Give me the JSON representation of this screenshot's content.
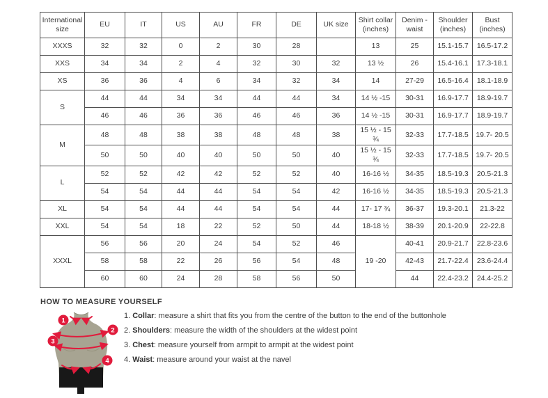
{
  "table": {
    "headers": [
      "International size",
      "EU",
      "IT",
      "US",
      "AU",
      "FR",
      "DE",
      "UK size",
      "Shirt collar (inches)",
      "Denim - waist",
      "Shoulder (inches)",
      "Bust (inches)"
    ],
    "rows": [
      {
        "size": "XXXS",
        "size_rowspan": 1,
        "cells": [
          "32",
          "32",
          "0",
          "2",
          "30",
          "28",
          "",
          "13",
          "25",
          "15.1-15.7",
          "16.5-17.2"
        ]
      },
      {
        "size": "XXS",
        "size_rowspan": 1,
        "cells": [
          "34",
          "34",
          "2",
          "4",
          "32",
          "30",
          "32",
          "13 ½",
          "26",
          "15.4-16.1",
          "17.3-18.1"
        ]
      },
      {
        "size": "XS",
        "size_rowspan": 1,
        "cells": [
          "36",
          "36",
          "4",
          "6",
          "34",
          "32",
          "34",
          "14",
          "27-29",
          "16.5-16.4",
          "18.1-18.9"
        ]
      },
      {
        "size": "S",
        "size_rowspan": 2,
        "cells": [
          "44",
          "44",
          "34",
          "34",
          "44",
          "44",
          "34",
          "14 ½ -15",
          "30-31",
          "16.9-17.7",
          "18.9-19.7"
        ]
      },
      {
        "size": "",
        "size_rowspan": 0,
        "cells": [
          "46",
          "46",
          "36",
          "36",
          "46",
          "46",
          "36",
          "14 ½ -15",
          "30-31",
          "16.9-17.7",
          "18.9-19.7"
        ]
      },
      {
        "size": "M",
        "size_rowspan": 2,
        "cells": [
          "48",
          "48",
          "38",
          "38",
          "48",
          "48",
          "38",
          "15 ½ - 15 ¾",
          "32-33",
          "17.7-18.5",
          "19.7- 20.5"
        ]
      },
      {
        "size": "",
        "size_rowspan": 0,
        "cells": [
          "50",
          "50",
          "40",
          "40",
          "50",
          "50",
          "40",
          "15 ½ - 15 ¾",
          "32-33",
          "17.7-18.5",
          "19.7- 20.5"
        ]
      },
      {
        "size": "L",
        "size_rowspan": 2,
        "cells": [
          "52",
          "52",
          "42",
          "42",
          "52",
          "52",
          "40",
          "16-16 ½",
          "34-35",
          "18.5-19.3",
          "20.5-21.3"
        ]
      },
      {
        "size": "",
        "size_rowspan": 0,
        "cells": [
          "54",
          "54",
          "44",
          "44",
          "54",
          "54",
          "42",
          "16-16 ½",
          "34-35",
          "18.5-19.3",
          "20.5-21.3"
        ]
      },
      {
        "size": "XL",
        "size_rowspan": 1,
        "cells": [
          "54",
          "54",
          "44",
          "44",
          "54",
          "54",
          "44",
          "17- 17 ¾",
          "36-37",
          "19.3-20.1",
          "21.3-22"
        ]
      },
      {
        "size": "XXL",
        "size_rowspan": 1,
        "cells": [
          "54",
          "54",
          "18",
          "22",
          "52",
          "50",
          "44",
          "18-18 ½",
          "38-39",
          "20.1-20.9",
          "22-22.8"
        ]
      },
      {
        "size": "XXXL",
        "size_rowspan": 3,
        "cells": [
          "56",
          "56",
          "20",
          "24",
          "54",
          "52",
          "46",
          {
            "t": "19 -20",
            "rs": 3
          },
          "40-41",
          "20.9-21.7",
          "22.8-23.6"
        ]
      },
      {
        "size": "",
        "size_rowspan": 0,
        "cells": [
          "58",
          "58",
          "22",
          "26",
          "56",
          "54",
          "48",
          "42-43",
          "21.7-22.4",
          "23.6-24.4"
        ]
      },
      {
        "size": "",
        "size_rowspan": 0,
        "cells": [
          "60",
          "60",
          "24",
          "28",
          "58",
          "56",
          "50",
          "44",
          "22.4-23.2",
          "24.4-25.2"
        ]
      }
    ]
  },
  "measure_guide": {
    "title": "HOW TO MEASURE YOURSELF",
    "items": [
      {
        "num": "1.",
        "label": "Collar",
        "marker": "1",
        "text": ": measure a shirt that fits you from the centre of the button to the end of the buttonhole"
      },
      {
        "num": "2.",
        "label": "Shoulders",
        "marker": "2",
        "text": ": measure the width of the shoulders at the widest point"
      },
      {
        "num": "3.",
        "label": "Chest",
        "marker": "3",
        "text": ": measure yourself from armpit to armpit at the widest point"
      },
      {
        "num": "4.",
        "label": "Waist",
        "marker": "4",
        "text": ": measure around your waist at the navel"
      }
    ]
  },
  "colors": {
    "accent_red": "#e11b3c",
    "mannequin_body": "#a7a492",
    "mannequin_shorts": "#181818",
    "table_border": "#4f4f4f",
    "text": "#3d3d3d"
  }
}
